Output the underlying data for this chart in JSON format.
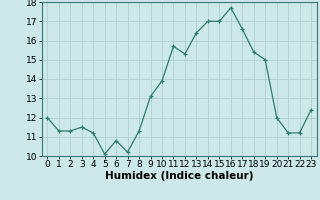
{
  "x": [
    0,
    1,
    2,
    3,
    4,
    5,
    6,
    7,
    8,
    9,
    10,
    11,
    12,
    13,
    14,
    15,
    16,
    17,
    18,
    19,
    20,
    21,
    22,
    23
  ],
  "y": [
    12.0,
    11.3,
    11.3,
    11.5,
    11.2,
    10.1,
    10.8,
    10.2,
    11.3,
    13.1,
    13.9,
    15.7,
    15.3,
    16.4,
    17.0,
    17.0,
    17.7,
    16.6,
    15.4,
    15.0,
    12.0,
    11.2,
    11.2,
    12.4
  ],
  "title": "",
  "xlabel": "Humidex (Indice chaleur)",
  "ylabel": "",
  "xlim": [
    -0.5,
    23.5
  ],
  "ylim": [
    10,
    18
  ],
  "yticks": [
    10,
    11,
    12,
    13,
    14,
    15,
    16,
    17,
    18
  ],
  "xticks": [
    0,
    1,
    2,
    3,
    4,
    5,
    6,
    7,
    8,
    9,
    10,
    11,
    12,
    13,
    14,
    15,
    16,
    17,
    18,
    19,
    20,
    21,
    22,
    23
  ],
  "line_color": "#2e7d6e",
  "marker": "+",
  "bg_color": "#cce8e8",
  "grid_color": "#aacccc",
  "xlabel_fontsize": 7.5,
  "tick_fontsize": 6.5
}
